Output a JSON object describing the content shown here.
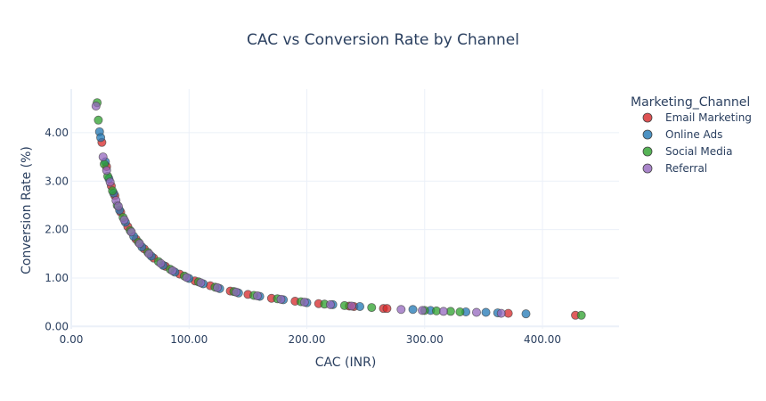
{
  "chart_data": {
    "type": "scatter",
    "title": "CAC vs Conversion Rate by Channel",
    "xlabel": "CAC (INR)",
    "ylabel": "Conversion Rate (%)",
    "xlim": [
      0,
      465
    ],
    "ylim": [
      -0.05,
      4.9
    ],
    "xticks": [
      0,
      100,
      200,
      300,
      400
    ],
    "xtick_labels": [
      "0.00",
      "100.00",
      "200.00",
      "300.00",
      "400.00"
    ],
    "yticks": [
      0,
      1,
      2,
      3,
      4
    ],
    "ytick_labels": [
      "0.00",
      "1.00",
      "2.00",
      "3.00",
      "4.00"
    ],
    "grid": true,
    "legend": {
      "title": "Marketing_Channel",
      "placement": "top-right"
    },
    "series": [
      {
        "name": "Email Marketing",
        "color": "#d62728",
        "x": [
          26,
          30,
          34,
          37,
          42,
          48,
          55,
          62,
          70,
          80,
          92,
          105,
          118,
          135,
          150,
          170,
          190,
          210,
          236,
          240,
          265,
          268,
          371,
          428
        ],
        "y": [
          3.8,
          3.3,
          2.9,
          2.7,
          2.36,
          2.06,
          1.8,
          1.6,
          1.41,
          1.24,
          1.08,
          0.94,
          0.84,
          0.73,
          0.66,
          0.58,
          0.52,
          0.47,
          0.42,
          0.41,
          0.37,
          0.37,
          0.27,
          0.23
        ]
      },
      {
        "name": "Online Ads",
        "color": "#1f77b4",
        "x": [
          24,
          25,
          29,
          32,
          36,
          41,
          46,
          53,
          60,
          68,
          78,
          88,
          100,
          112,
          126,
          142,
          160,
          180,
          200,
          222,
          245,
          290,
          305,
          335,
          352,
          362,
          386
        ],
        "y": [
          4.02,
          3.9,
          3.4,
          3.05,
          2.75,
          2.4,
          2.15,
          1.86,
          1.64,
          1.45,
          1.26,
          1.12,
          0.99,
          0.88,
          0.78,
          0.69,
          0.62,
          0.55,
          0.49,
          0.45,
          0.41,
          0.35,
          0.33,
          0.3,
          0.29,
          0.28,
          0.26
        ]
      },
      {
        "name": "Social Media",
        "color": "#2ca02c",
        "x": [
          22,
          23,
          28,
          31,
          35,
          39,
          44,
          50,
          57,
          65,
          74,
          84,
          96,
          108,
          122,
          138,
          155,
          175,
          195,
          215,
          232,
          255,
          300,
          310,
          322,
          330,
          433
        ],
        "y": [
          4.62,
          4.26,
          3.35,
          3.1,
          2.8,
          2.5,
          2.25,
          1.98,
          1.74,
          1.53,
          1.34,
          1.18,
          1.04,
          0.92,
          0.81,
          0.72,
          0.64,
          0.57,
          0.51,
          0.46,
          0.43,
          0.39,
          0.33,
          0.32,
          0.31,
          0.3,
          0.23
        ]
      },
      {
        "name": "Referral",
        "color": "#9467bd",
        "x": [
          21,
          27,
          30,
          33,
          38,
          40,
          45,
          51,
          58,
          66,
          76,
          86,
          98,
          110,
          124,
          140,
          158,
          178,
          198,
          220,
          238,
          280,
          298,
          316,
          344,
          365
        ],
        "y": [
          4.55,
          3.5,
          3.22,
          2.98,
          2.6,
          2.48,
          2.2,
          1.95,
          1.71,
          1.5,
          1.3,
          1.15,
          1.01,
          0.9,
          0.8,
          0.71,
          0.63,
          0.56,
          0.5,
          0.45,
          0.42,
          0.35,
          0.33,
          0.31,
          0.29,
          0.27
        ]
      }
    ]
  }
}
